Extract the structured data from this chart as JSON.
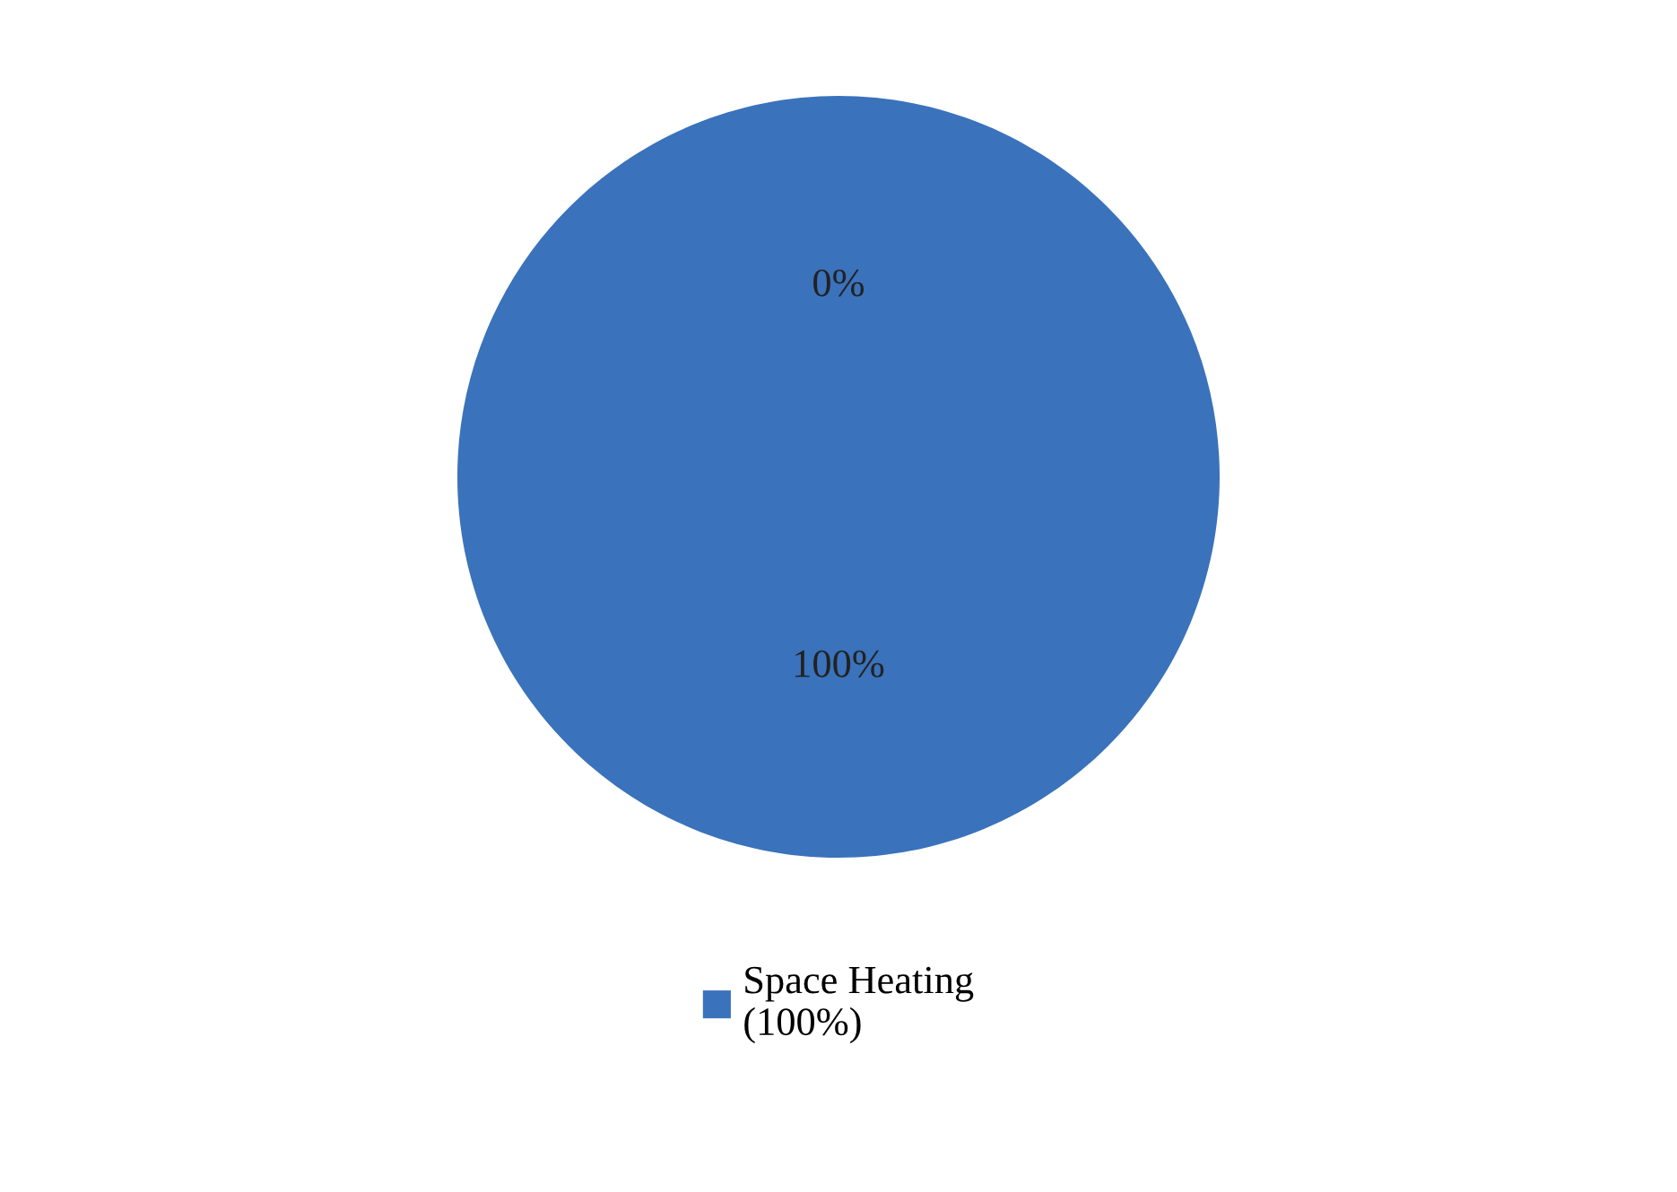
{
  "chart_data": {
    "type": "pie",
    "categories": [
      "Space Heating (100%)",
      null
    ],
    "values": [
      100,
      0
    ],
    "colors": [
      "#3a72bb",
      "#b94a48"
    ],
    "value_labels": [
      "100%",
      "0%"
    ],
    "legend": "bottom"
  }
}
